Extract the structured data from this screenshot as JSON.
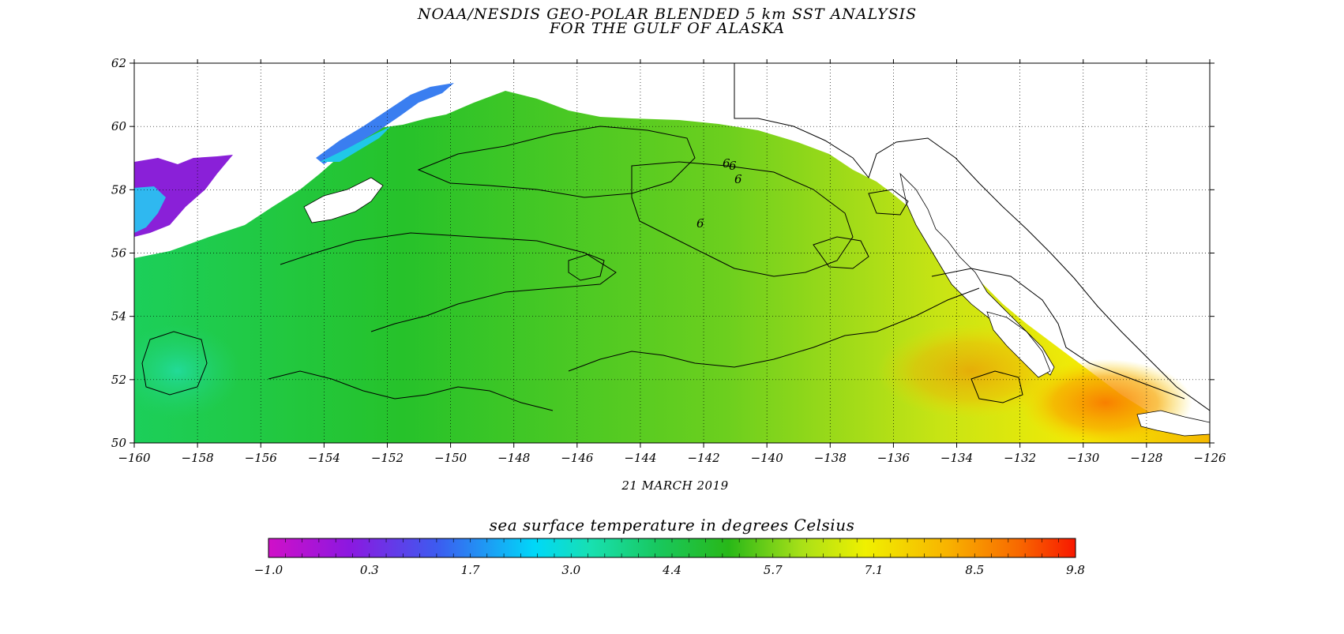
{
  "title": {
    "line1": "NOAA/NESDIS GEO-POLAR BLENDED 5 km SST ANALYSIS",
    "line2": "FOR THE GULF OF ALASKA"
  },
  "date_label": "21 MARCH 2019",
  "map": {
    "lon_range": [
      -160,
      -126
    ],
    "lat_range": [
      50,
      62
    ],
    "x_ticks": [
      "-160",
      "-158",
      "-156",
      "-154",
      "-152",
      "-150",
      "-148",
      "-146",
      "-144",
      "-142",
      "-140",
      "-138",
      "-136",
      "-134",
      "-132",
      "-130",
      "-128",
      "-126"
    ],
    "y_ticks": [
      "50",
      "52",
      "54",
      "56",
      "58",
      "60",
      "62"
    ],
    "grid": "dotted",
    "contour_labels": [
      "6",
      "6",
      "6",
      "6"
    ]
  },
  "colorbar": {
    "title": "sea surface temperature in degrees Celsius",
    "range": [
      -1.0,
      9.8
    ],
    "tick_labels": [
      "-1.0",
      "0.3",
      "1.7",
      "3.0",
      "4.4",
      "5.7",
      "7.1",
      "8.5",
      "9.8"
    ],
    "stops": [
      "#d010c8",
      "#8c18e0",
      "#3c5cf0",
      "#00c8f8",
      "#18e0b0",
      "#18c860",
      "#20b818",
      "#88d818",
      "#e8f000",
      "#f8c800",
      "#f88400",
      "#f82000"
    ]
  }
}
